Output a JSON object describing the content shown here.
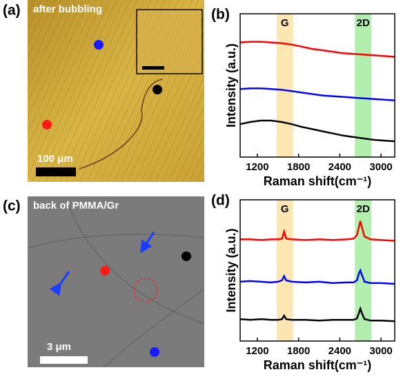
{
  "panels": [
    {
      "label": "(a)",
      "caption": "after bubbling",
      "scale_bar": "100 μm"
    },
    {
      "label": "(c)",
      "caption": "back of PMMA/Gr",
      "scale_bar": "3 μm"
    }
  ],
  "chart_data": [
    {
      "type": "line",
      "label": "(b)",
      "y_label": "Intensity (a.u.)",
      "x_label": "Raman shift(cm⁻¹)",
      "xlim": [
        950,
        3200
      ],
      "xticks": [
        1200,
        1800,
        2400,
        3000
      ],
      "ylim": [
        0,
        10
      ],
      "bands": [
        {
          "label": "G",
          "range": [
            1480,
            1720
          ],
          "color": "#fbe3a6"
        },
        {
          "label": "2D",
          "range": [
            2620,
            2860
          ],
          "color": "#a5eba0"
        }
      ],
      "x": [
        950,
        1100,
        1250,
        1400,
        1550,
        1700,
        1850,
        2000,
        2150,
        2300,
        2450,
        2600,
        2750,
        2900,
        3050,
        3200
      ],
      "series": [
        {
          "color": "#ff0000",
          "values": [
            8.0,
            8.05,
            8.05,
            8.0,
            7.95,
            7.85,
            7.7,
            7.55,
            7.45,
            7.35,
            7.25,
            7.2,
            7.15,
            7.1,
            7.05,
            7.0
          ]
        },
        {
          "color": "#0000ff",
          "values": [
            4.75,
            4.8,
            4.8,
            4.75,
            4.7,
            4.6,
            4.5,
            4.4,
            4.3,
            4.25,
            4.2,
            4.15,
            4.1,
            4.05,
            4.0,
            3.95
          ]
        },
        {
          "color": "#000000",
          "values": [
            2.3,
            2.45,
            2.55,
            2.55,
            2.45,
            2.3,
            2.1,
            1.95,
            1.8,
            1.65,
            1.5,
            1.4,
            1.3,
            1.2,
            1.15,
            1.1
          ]
        }
      ]
    },
    {
      "type": "line",
      "label": "(d)",
      "y_label": "Intensity (a.u.)",
      "x_label": "Raman shift(cm⁻¹)",
      "xlim": [
        950,
        3200
      ],
      "xticks": [
        1200,
        1800,
        2400,
        3000
      ],
      "ylim": [
        0,
        10
      ],
      "bands": [
        {
          "label": "G",
          "range": [
            1480,
            1720
          ],
          "color": "#fbe3a6"
        },
        {
          "label": "2D",
          "range": [
            2620,
            2860
          ],
          "color": "#a5eba0"
        }
      ],
      "x": [
        950,
        1100,
        1250,
        1400,
        1500,
        1560,
        1590,
        1620,
        1700,
        1900,
        2100,
        2300,
        2500,
        2600,
        2650,
        2680,
        2700,
        2720,
        2760,
        2850,
        3000,
        3200
      ],
      "series": [
        {
          "color": "#ff0000",
          "values": [
            7.2,
            7.2,
            7.15,
            7.2,
            7.2,
            7.25,
            7.75,
            7.25,
            7.2,
            7.15,
            7.2,
            7.15,
            7.2,
            7.25,
            7.5,
            8.1,
            8.5,
            8.1,
            7.4,
            7.2,
            7.15,
            7.1
          ]
        },
        {
          "color": "#0000ff",
          "values": [
            4.2,
            4.25,
            4.2,
            4.15,
            4.2,
            4.3,
            4.6,
            4.3,
            4.2,
            4.15,
            4.2,
            4.1,
            4.15,
            4.15,
            4.3,
            4.8,
            5.0,
            4.7,
            4.2,
            4.1,
            4.1,
            4.05
          ]
        },
        {
          "color": "#000000",
          "values": [
            1.55,
            1.5,
            1.55,
            1.5,
            1.5,
            1.55,
            1.8,
            1.55,
            1.5,
            1.5,
            1.45,
            1.5,
            1.5,
            1.5,
            1.6,
            2.0,
            2.3,
            2.0,
            1.55,
            1.45,
            1.45,
            1.4
          ]
        }
      ]
    }
  ]
}
